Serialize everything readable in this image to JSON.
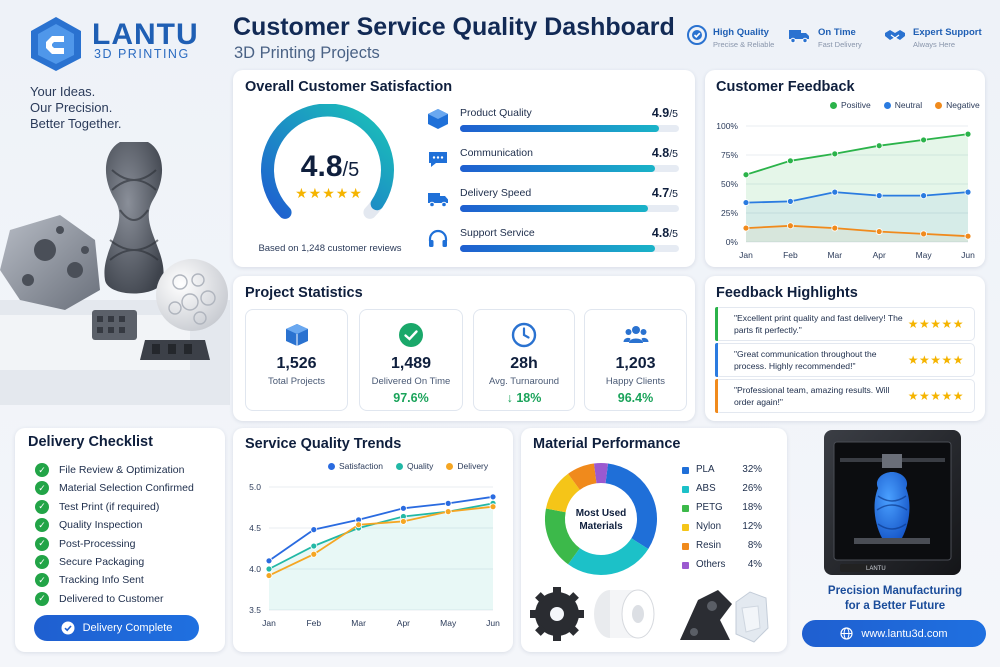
{
  "brand": {
    "name": "LANTU",
    "subtitle": "3D PRINTING",
    "tagline": [
      "Your Ideas.",
      "Our Precision.",
      "Better Together."
    ]
  },
  "header": {
    "title": "Customer Service Quality Dashboard",
    "subtitle": "3D Printing Projects",
    "badges": [
      {
        "icon": "badge-check-icon",
        "title": "High Quality",
        "sub": "Precise & Reliable"
      },
      {
        "icon": "delivery-truck-icon",
        "title": "On Time",
        "sub": "Fast Delivery"
      },
      {
        "icon": "handshake-icon",
        "title": "Expert Support",
        "sub": "Always Here"
      }
    ]
  },
  "satisfaction": {
    "title": "Overall Customer Satisfaction",
    "score": "4.8",
    "score_max": "/5",
    "score_fraction": 0.96,
    "stars": "★★★★★",
    "note": "Based on 1,248 customer reviews",
    "metrics": [
      {
        "label": "Product Quality",
        "value": "4.9",
        "max": "/5",
        "fraction": 0.91,
        "icon": "cube-icon"
      },
      {
        "label": "Communication",
        "value": "4.8",
        "max": "/5",
        "fraction": 0.89,
        "icon": "chat-bubble-icon"
      },
      {
        "label": "Delivery Speed",
        "value": "4.7",
        "max": "/5",
        "fraction": 0.86,
        "icon": "delivery-truck-icon"
      },
      {
        "label": "Support Service",
        "value": "4.8",
        "max": "/5",
        "fraction": 0.89,
        "icon": "headset-icon"
      }
    ]
  },
  "feedback": {
    "title": "Customer Feedback",
    "chart_data": {
      "type": "line",
      "x": [
        "Jan",
        "Feb",
        "Mar",
        "Apr",
        "May",
        "Jun"
      ],
      "yticks": [
        "100%",
        "75%",
        "50%",
        "25%",
        "0%"
      ],
      "ylim": [
        0,
        100
      ],
      "series": [
        {
          "name": "Positive",
          "color": "#2bb34a",
          "values": [
            58,
            70,
            76,
            83,
            88,
            93
          ]
        },
        {
          "name": "Neutral",
          "color": "#2a7be0",
          "values": [
            34,
            35,
            43,
            40,
            40,
            43
          ]
        },
        {
          "name": "Negative",
          "color": "#f08a1c",
          "values": [
            12,
            14,
            12,
            9,
            7,
            5
          ]
        }
      ],
      "legend": "top-right"
    }
  },
  "stats": {
    "title": "Project Statistics",
    "items": [
      {
        "icon": "cube-icon",
        "value": "1,526",
        "label": "Total Projects",
        "extra": ""
      },
      {
        "icon": "check-circle-icon",
        "value": "1,489",
        "label": "Delivered On Time",
        "extra": "97.6%"
      },
      {
        "icon": "clock-icon",
        "value": "28h",
        "label": "Avg. Turnaround",
        "extra": "↓ 18%"
      },
      {
        "icon": "users-icon",
        "value": "1,203",
        "label": "Happy Clients",
        "extra": "96.4%"
      }
    ]
  },
  "highlights": {
    "title": "Feedback Highlights",
    "items": [
      {
        "text": "\"Excellent print quality and fast delivery! The parts fit perfectly.\"",
        "stars": "★★★★★",
        "color": "#2bb34a"
      },
      {
        "text": "\"Great communication throughout the process. Highly recommended!\"",
        "stars": "★★★★★",
        "color": "#2a7be0"
      },
      {
        "text": "\"Professional team, amazing results. Will order again!\"",
        "stars": "★★★★★",
        "color": "#f08a1c"
      }
    ]
  },
  "checklist": {
    "title": "Delivery Checklist",
    "items": [
      "File Review & Optimization",
      "Material Selection Confirmed",
      "Test Print (if required)",
      "Quality Inspection",
      "Post-Processing",
      "Secure Packaging",
      "Tracking Info Sent",
      "Delivered to Customer"
    ],
    "button": "Delivery Complete"
  },
  "trends": {
    "title": "Service Quality Trends",
    "chart_data": {
      "type": "line",
      "x": [
        "Jan",
        "Feb",
        "Mar",
        "Apr",
        "May",
        "Jun"
      ],
      "yticks": [
        "5.0",
        "4.5",
        "4.0",
        "3.5"
      ],
      "ylim": [
        3.5,
        5.0
      ],
      "series": [
        {
          "name": "Satisfaction",
          "color": "#2a6be0",
          "values": [
            4.1,
            4.48,
            4.6,
            4.74,
            4.8,
            4.88
          ]
        },
        {
          "name": "Quality",
          "color": "#22b8a6",
          "values": [
            4.0,
            4.28,
            4.5,
            4.64,
            4.7,
            4.8
          ]
        },
        {
          "name": "Delivery",
          "color": "#f5a623",
          "values": [
            3.92,
            4.18,
            4.54,
            4.58,
            4.7,
            4.76
          ]
        }
      ],
      "legend": "top-right"
    }
  },
  "materials": {
    "title": "Material Performance",
    "center_label": [
      "Most Used",
      "Materials"
    ],
    "chart_data": {
      "type": "pie",
      "labels": [
        "PLA",
        "ABS",
        "PETG",
        "Nylon",
        "Resin",
        "Others"
      ],
      "values": [
        32,
        26,
        18,
        12,
        8,
        4
      ],
      "display": [
        "32%",
        "26%",
        "18%",
        "12%",
        "8%",
        "4%"
      ],
      "colors": [
        "#1f6fd8",
        "#1cc1c8",
        "#3cb94a",
        "#f5c518",
        "#f08a1c",
        "#9b59d0"
      ]
    }
  },
  "promo": {
    "line1": "Precision Manufacturing",
    "line2": "for a Better Future",
    "website": "www.lantu3d.com",
    "printer_brand": "LANTU"
  }
}
